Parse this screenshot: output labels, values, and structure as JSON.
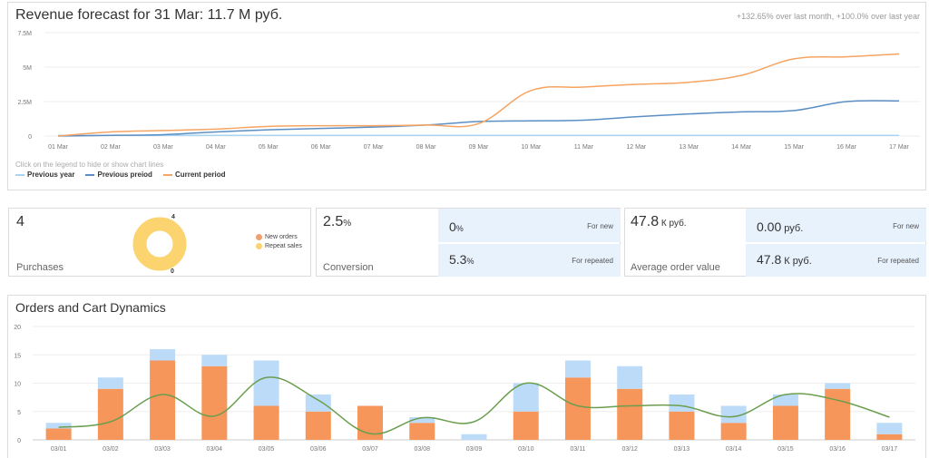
{
  "revenue": {
    "title": "Revenue forecast for 31 Mar: 11.7 M руб.",
    "subtitle": "+132.65% over last month, +100.0% over last year",
    "legend_hint": "Click on the legend to hide or show chart lines",
    "legend": [
      {
        "label": "Previous year",
        "color": "#a9d4f2"
      },
      {
        "label": "Previous preiod",
        "color": "#5b8fc4"
      },
      {
        "label": "Current period",
        "color": "#f5a462"
      }
    ]
  },
  "purchases": {
    "value": "4",
    "caption": "Purchases",
    "legend": [
      {
        "label": "New orders",
        "color": "#f0a070"
      },
      {
        "label": "Repeat sales",
        "color": "#fbd470"
      }
    ],
    "pie_top_label": "4",
    "pie_bottom_label": "0"
  },
  "conversion": {
    "value": "2.5",
    "unit": "%",
    "caption": "Conversion",
    "new_value": "0",
    "new_unit": "%",
    "new_label": "For new",
    "repeated_value": "5.3",
    "repeated_unit": "%",
    "repeated_label": "For repeated"
  },
  "aov": {
    "value": "47.8",
    "unit": " К руб.",
    "caption": "Average order value",
    "new_value": "0.00",
    "new_unit": " руб.",
    "new_label": "For new",
    "repeated_value": "47.8",
    "repeated_unit": " К руб.",
    "repeated_label": "For repeated"
  },
  "orders": {
    "title": "Orders and Cart Dynamics"
  },
  "chart_data": [
    {
      "type": "line",
      "title": "Revenue forecast for 31 Mar: 11.7 M руб.",
      "categories": [
        "01 Mar",
        "02 Mar",
        "03 Mar",
        "04 Mar",
        "05 Mar",
        "06 Mar",
        "07 Mar",
        "08 Mar",
        "09 Mar",
        "10 Mar",
        "11 Mar",
        "12 Mar",
        "13 Mar",
        "14 Mar",
        "15 Mar",
        "16 Mar",
        "17 Mar"
      ],
      "y_ticks": [
        "0",
        "2.5M",
        "5M",
        "7.5M"
      ],
      "ylim": [
        0,
        7.5
      ],
      "series": [
        {
          "name": "Previous year",
          "color": "#a9d4f2",
          "values": [
            0.05,
            0.05,
            0.05,
            0.05,
            0.05,
            0.05,
            0.05,
            0.05,
            0.05,
            0.05,
            0.05,
            0.05,
            0.05,
            0.05,
            0.05,
            0.05,
            0.05
          ]
        },
        {
          "name": "Previous preiod",
          "color": "#5b8fc4",
          "values": [
            0.0,
            0.05,
            0.1,
            0.3,
            0.45,
            0.55,
            0.65,
            0.8,
            1.05,
            1.1,
            1.15,
            1.4,
            1.6,
            1.75,
            1.85,
            2.5,
            2.55
          ]
        },
        {
          "name": "Current period",
          "color": "#f5a462",
          "values": [
            0.0,
            0.3,
            0.4,
            0.5,
            0.7,
            0.75,
            0.75,
            0.8,
            0.9,
            3.3,
            3.55,
            3.75,
            3.9,
            4.4,
            5.6,
            5.75,
            5.95
          ]
        }
      ]
    },
    {
      "type": "pie",
      "slices": [
        {
          "label": "New orders",
          "value": 0,
          "color": "#f0a070"
        },
        {
          "label": "Repeat sales",
          "value": 4,
          "color": "#fbd470"
        }
      ]
    },
    {
      "type": "bar",
      "title": "Orders and Cart Dynamics",
      "categories": [
        "03/01",
        "03/02",
        "03/03",
        "03/04",
        "03/05",
        "03/06",
        "03/07",
        "03/08",
        "03/09",
        "03/10",
        "03/11",
        "03/12",
        "03/13",
        "03/14",
        "03/15",
        "03/16",
        "03/17"
      ],
      "y_ticks": [
        "0",
        "5",
        "10",
        "15",
        "20"
      ],
      "ylim": [
        0,
        20
      ],
      "stacked": true,
      "series": [
        {
          "color": "#f7965a",
          "values": [
            2,
            9,
            14,
            13,
            6,
            5,
            6,
            3,
            0,
            5,
            11,
            9,
            5,
            3,
            6,
            9,
            1
          ]
        },
        {
          "color": "#bcdbf8",
          "values": [
            1,
            2,
            2,
            2,
            8,
            3,
            0,
            1,
            1,
            5,
            3,
            4,
            3,
            3,
            2,
            1,
            2
          ]
        },
        {
          "color": "#6a9e4e",
          "type": "line",
          "values": [
            2.2,
            3.2,
            8,
            4.2,
            11,
            7,
            1.1,
            3.9,
            3.2,
            10,
            6,
            6,
            6,
            4.1,
            8,
            7,
            4
          ]
        }
      ]
    }
  ]
}
